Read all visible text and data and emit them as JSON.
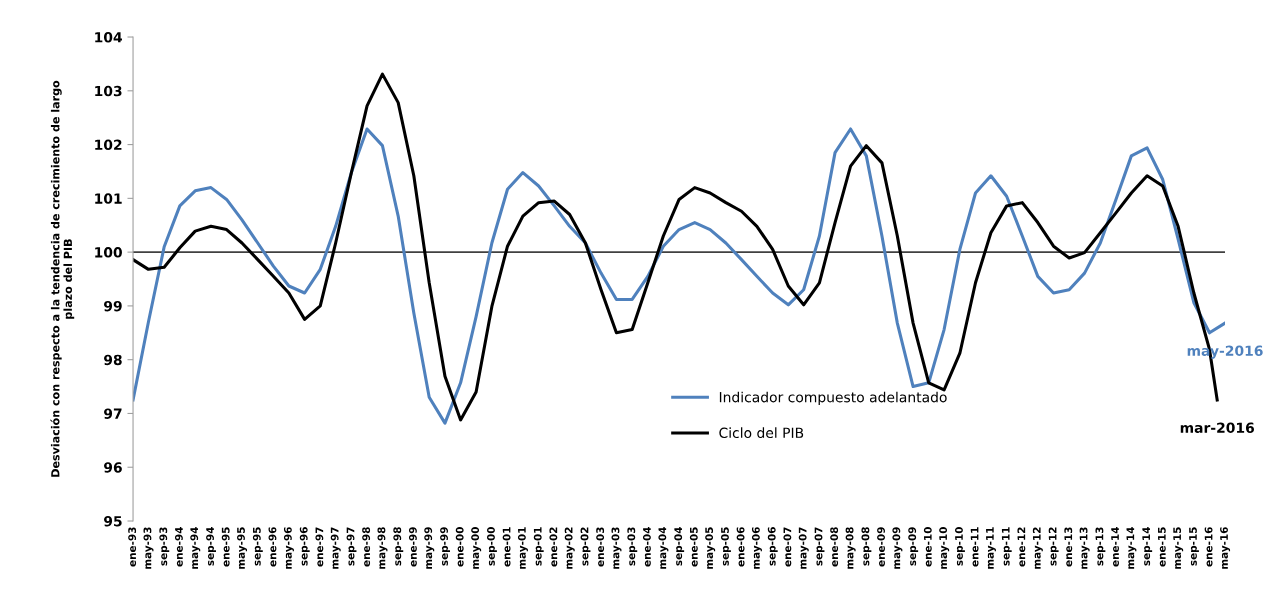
{
  "chart_data": {
    "type": "line",
    "ylabel": "Desviación con respecto a la tendencia de crecimiento de largo\nplazo del PIB",
    "ylim": [
      95,
      104
    ],
    "yticks": [
      95,
      96,
      97,
      98,
      99,
      100,
      101,
      102,
      103,
      104
    ],
    "xlim": [
      "1993-01",
      "2016-05"
    ],
    "xticks": [
      {
        "value": "1993-01",
        "label": "ene-93"
      },
      {
        "value": "1993-05",
        "label": "may-93"
      },
      {
        "value": "1993-09",
        "label": "sep-93"
      },
      {
        "value": "1994-01",
        "label": "ene-94"
      },
      {
        "value": "1994-05",
        "label": "may-94"
      },
      {
        "value": "1994-09",
        "label": "sep-94"
      },
      {
        "value": "1995-01",
        "label": "ene-95"
      },
      {
        "value": "1995-05",
        "label": "may-95"
      },
      {
        "value": "1995-09",
        "label": "sep-95"
      },
      {
        "value": "1996-01",
        "label": "ene-96"
      },
      {
        "value": "1996-05",
        "label": "may-96"
      },
      {
        "value": "1996-09",
        "label": "sep-96"
      },
      {
        "value": "1997-01",
        "label": "ene-97"
      },
      {
        "value": "1997-05",
        "label": "may-97"
      },
      {
        "value": "1997-09",
        "label": "sep-97"
      },
      {
        "value": "1998-01",
        "label": "ene-98"
      },
      {
        "value": "1998-05",
        "label": "may-98"
      },
      {
        "value": "1998-09",
        "label": "sep-98"
      },
      {
        "value": "1999-01",
        "label": "ene-99"
      },
      {
        "value": "1999-05",
        "label": "may-99"
      },
      {
        "value": "1999-09",
        "label": "sep-99"
      },
      {
        "value": "2000-01",
        "label": "ene-00"
      },
      {
        "value": "2000-05",
        "label": "may-00"
      },
      {
        "value": "2000-09",
        "label": "sep-00"
      },
      {
        "value": "2001-01",
        "label": "ene-01"
      },
      {
        "value": "2001-05",
        "label": "may-01"
      },
      {
        "value": "2001-09",
        "label": "sep-01"
      },
      {
        "value": "2002-01",
        "label": "ene-02"
      },
      {
        "value": "2002-05",
        "label": "may-02"
      },
      {
        "value": "2002-09",
        "label": "sep-02"
      },
      {
        "value": "2003-01",
        "label": "ene-03"
      },
      {
        "value": "2003-05",
        "label": "may-03"
      },
      {
        "value": "2003-09",
        "label": "sep-03"
      },
      {
        "value": "2004-01",
        "label": "ene-04"
      },
      {
        "value": "2004-05",
        "label": "may-04"
      },
      {
        "value": "2004-09",
        "label": "sep-04"
      },
      {
        "value": "2005-01",
        "label": "ene-05"
      },
      {
        "value": "2005-05",
        "label": "may-05"
      },
      {
        "value": "2005-09",
        "label": "sep-05"
      },
      {
        "value": "2006-01",
        "label": "ene-06"
      },
      {
        "value": "2006-05",
        "label": "may-06"
      },
      {
        "value": "2006-09",
        "label": "sep-06"
      },
      {
        "value": "2007-01",
        "label": "ene-07"
      },
      {
        "value": "2007-05",
        "label": "may-07"
      },
      {
        "value": "2007-09",
        "label": "sep-07"
      },
      {
        "value": "2008-01",
        "label": "ene-08"
      },
      {
        "value": "2008-05",
        "label": "may-08"
      },
      {
        "value": "2008-09",
        "label": "sep-08"
      },
      {
        "value": "2009-01",
        "label": "ene-09"
      },
      {
        "value": "2009-05",
        "label": "may-09"
      },
      {
        "value": "2009-09",
        "label": "sep-09"
      },
      {
        "value": "2010-01",
        "label": "ene-10"
      },
      {
        "value": "2010-05",
        "label": "may-10"
      },
      {
        "value": "2010-09",
        "label": "sep-10"
      },
      {
        "value": "2011-01",
        "label": "ene-11"
      },
      {
        "value": "2011-05",
        "label": "may-11"
      },
      {
        "value": "2011-09",
        "label": "sep-11"
      },
      {
        "value": "2012-01",
        "label": "ene-12"
      },
      {
        "value": "2012-05",
        "label": "may-12"
      },
      {
        "value": "2012-09",
        "label": "sep-12"
      },
      {
        "value": "2013-01",
        "label": "ene-13"
      },
      {
        "value": "2013-05",
        "label": "may-13"
      },
      {
        "value": "2013-09",
        "label": "sep-13"
      },
      {
        "value": "2014-01",
        "label": "ene-14"
      },
      {
        "value": "2014-05",
        "label": "may-14"
      },
      {
        "value": "2014-09",
        "label": "sep-14"
      },
      {
        "value": "2015-01",
        "label": "ene-15"
      },
      {
        "value": "2015-05",
        "label": "may-15"
      },
      {
        "value": "2015-09",
        "label": "sep-15"
      },
      {
        "value": "2016-01",
        "label": "ene-16"
      },
      {
        "value": "2016-05",
        "label": "may-16"
      }
    ],
    "series": [
      {
        "name": "Indicador compuesto adelantado",
        "color": "#4f81bd",
        "x": [
          "1993-01",
          "1993-05",
          "1993-09",
          "1994-01",
          "1994-05",
          "1994-09",
          "1995-01",
          "1995-05",
          "1995-09",
          "1996-01",
          "1996-05",
          "1996-09",
          "1997-01",
          "1997-05",
          "1997-09",
          "1998-01",
          "1998-05",
          "1998-09",
          "1999-01",
          "1999-05",
          "1999-09",
          "2000-01",
          "2000-05",
          "2000-09",
          "2001-01",
          "2001-05",
          "2001-09",
          "2002-01",
          "2002-05",
          "2002-09",
          "2003-01",
          "2003-05",
          "2003-09",
          "2004-01",
          "2004-05",
          "2004-09",
          "2005-01",
          "2005-05",
          "2005-09",
          "2006-01",
          "2006-05",
          "2006-09",
          "2007-01",
          "2007-05",
          "2007-09",
          "2008-01",
          "2008-05",
          "2008-09",
          "2009-01",
          "2009-05",
          "2009-09",
          "2010-01",
          "2010-05",
          "2010-09",
          "2011-01",
          "2011-05",
          "2011-09",
          "2012-01",
          "2012-05",
          "2012-09",
          "2013-01",
          "2013-05",
          "2013-09",
          "2014-01",
          "2014-05",
          "2014-09",
          "2015-01",
          "2015-05",
          "2015-09",
          "2016-01",
          "2016-05"
        ],
        "values": [
          97.25,
          98.7,
          100.1,
          100.86,
          101.14,
          101.2,
          100.98,
          100.6,
          100.17,
          99.74,
          99.37,
          99.24,
          99.68,
          100.48,
          101.48,
          102.29,
          101.98,
          100.67,
          98.87,
          97.3,
          96.82,
          97.57,
          98.8,
          100.17,
          101.17,
          101.48,
          101.23,
          100.86,
          100.48,
          100.17,
          99.61,
          99.12,
          99.12,
          99.55,
          100.11,
          100.42,
          100.55,
          100.42,
          100.17,
          99.86,
          99.55,
          99.24,
          99.02,
          99.3,
          100.3,
          101.85,
          102.29,
          101.79,
          100.3,
          98.68,
          97.5,
          97.57,
          98.56,
          100.05,
          101.1,
          101.42,
          101.04,
          100.3,
          99.55,
          99.24,
          99.3,
          99.61,
          100.17,
          100.98,
          101.79,
          101.94,
          101.35,
          100.24,
          99.06,
          98.5,
          98.68
        ]
      },
      {
        "name": "Ciclo del PIB",
        "color": "#000000",
        "x": [
          "1993-01",
          "1993-05",
          "1993-09",
          "1994-01",
          "1994-05",
          "1994-09",
          "1995-01",
          "1995-05",
          "1995-09",
          "1996-01",
          "1996-05",
          "1996-09",
          "1997-01",
          "1997-05",
          "1997-09",
          "1998-01",
          "1998-05",
          "1998-09",
          "1999-01",
          "1999-05",
          "1999-09",
          "2000-01",
          "2000-05",
          "2000-09",
          "2001-01",
          "2001-05",
          "2001-09",
          "2002-01",
          "2002-05",
          "2002-09",
          "2003-01",
          "2003-05",
          "2003-09",
          "2004-01",
          "2004-05",
          "2004-09",
          "2005-01",
          "2005-05",
          "2005-09",
          "2006-01",
          "2006-05",
          "2006-09",
          "2007-01",
          "2007-05",
          "2007-09",
          "2008-01",
          "2008-05",
          "2008-09",
          "2009-01",
          "2009-05",
          "2009-09",
          "2010-01",
          "2010-05",
          "2010-09",
          "2011-01",
          "2011-05",
          "2011-09",
          "2012-01",
          "2012-05",
          "2012-09",
          "2013-01",
          "2013-05",
          "2013-09",
          "2014-01",
          "2014-05",
          "2014-09",
          "2015-01",
          "2015-05",
          "2015-09",
          "2016-01",
          "2016-03"
        ],
        "values": [
          99.86,
          99.68,
          99.72,
          100.08,
          100.39,
          100.48,
          100.42,
          100.17,
          99.86,
          99.55,
          99.24,
          98.75,
          99.0,
          100.17,
          101.48,
          102.72,
          103.31,
          102.78,
          101.42,
          99.43,
          97.69,
          96.88,
          97.4,
          98.99,
          100.11,
          100.67,
          100.92,
          100.95,
          100.7,
          100.17,
          99.3,
          98.5,
          98.56,
          99.43,
          100.3,
          100.98,
          101.2,
          101.1,
          100.92,
          100.76,
          100.48,
          100.05,
          99.37,
          99.02,
          99.43,
          100.55,
          101.6,
          101.98,
          101.66,
          100.3,
          98.68,
          97.57,
          97.44,
          98.12,
          99.43,
          100.36,
          100.86,
          100.92,
          100.55,
          100.11,
          99.89,
          99.99,
          100.36,
          100.73,
          101.1,
          101.42,
          101.23,
          100.48,
          99.24,
          98.19,
          97.25
        ]
      }
    ],
    "ref_lines": [
      {
        "axis": "y",
        "value": 100,
        "color": "#404040"
      }
    ],
    "annotations": [
      {
        "text": "may-2016",
        "x": "2016-05",
        "y": 98.68
      },
      {
        "text": "mar-2016",
        "x": "2016-03",
        "y": 97.25
      }
    ],
    "legend": "bottom",
    "grid": false,
    "marker": "none",
    "line_style": "solid"
  }
}
